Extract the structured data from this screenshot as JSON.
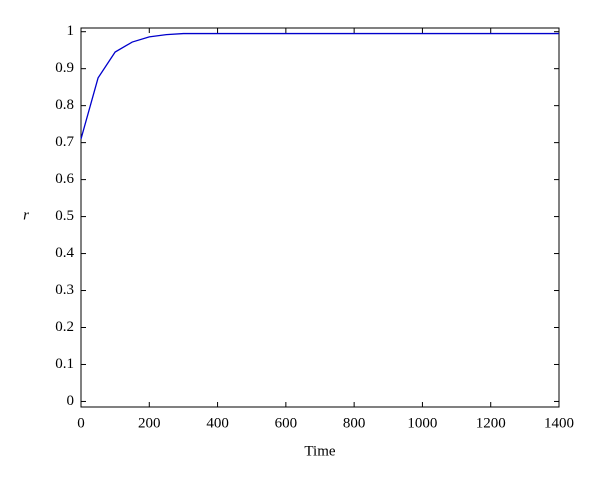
{
  "chart_data": {
    "type": "line",
    "x_label": "Time",
    "y_label": "r",
    "x": [
      0,
      50,
      100,
      150,
      200,
      250,
      300,
      1400
    ],
    "series": [
      {
        "name": "r",
        "color": "#0000cc",
        "values": [
          0.71,
          0.875,
          0.945,
          0.972,
          0.986,
          0.992,
          0.995,
          0.995
        ]
      }
    ],
    "xlim": [
      0,
      1400
    ],
    "xticks": [
      0,
      200,
      400,
      600,
      800,
      1000,
      1200,
      1400
    ],
    "ylim": [
      -0.015,
      1.01
    ],
    "yticks": [
      0,
      0.1,
      0.2,
      0.3,
      0.4,
      0.5,
      0.6,
      0.7,
      0.8,
      0.9,
      1
    ],
    "grid": false
  }
}
